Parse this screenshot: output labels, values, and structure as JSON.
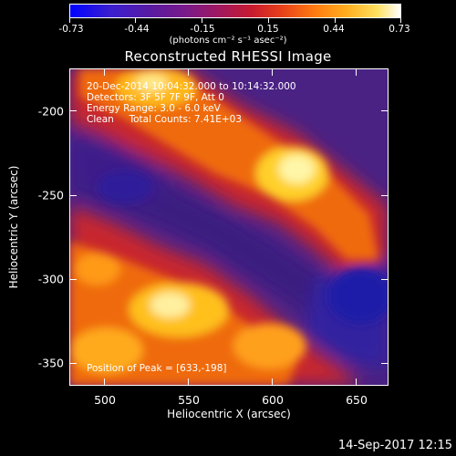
{
  "colorbar": {
    "tick_labels": [
      "-0.73",
      "-0.44",
      "-0.15",
      "0.15",
      "0.44",
      "0.73"
    ],
    "units": "(photons cm⁻² s⁻¹ asec⁻²)",
    "range": [
      -0.73,
      0.73
    ]
  },
  "title": "Reconstructed RHESSI Image",
  "overlay": {
    "time_range": "20-Dec-2014 10:04:32.000 to 10:14:32.000",
    "detectors": "Detectors: 3F 5F 7F 9F, Att 0",
    "energy": "Energy Range: 3.0 - 6.0 keV",
    "clean": "Clean     Total Counts: 7.41E+03",
    "peak": "Position of Peak = [633,-198]"
  },
  "axes": {
    "xlabel": "Heliocentric X (arcsec)",
    "ylabel": "Heliocentric Y (arcsec)",
    "x_ticks": [
      "500",
      "550",
      "600",
      "650"
    ],
    "y_ticks": [
      "-200",
      "-250",
      "-300",
      "-350"
    ],
    "x_range": [
      481,
      671
    ],
    "y_range": [
      -371,
      -181
    ]
  },
  "timestamp": "14-Sep-2017 12:15"
}
